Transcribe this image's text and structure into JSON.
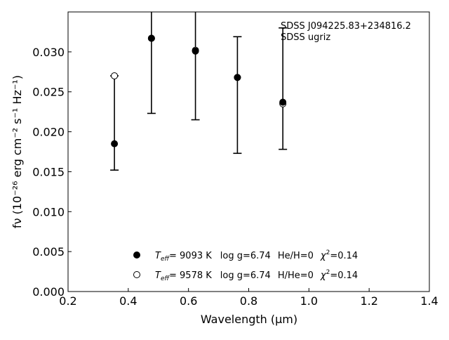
{
  "chart_data": {
    "type": "scatter",
    "xlabel": "Wavelength (μm)",
    "ylabel": "fν (10⁻²⁶ erg cm⁻² s⁻¹ Hz⁻¹)",
    "xlim": [
      0.2,
      1.4
    ],
    "ylim": [
      0.0,
      0.035
    ],
    "x_ticks": [
      0.2,
      0.4,
      0.6,
      0.8,
      1.0,
      1.2,
      1.4
    ],
    "x_tick_labels": [
      "0.2",
      "0.4",
      "0.6",
      "0.8",
      "1.0",
      "1.2",
      "1.4"
    ],
    "y_ticks": [
      0.0,
      0.005,
      0.01,
      0.015,
      0.02,
      0.025,
      0.03
    ],
    "y_tick_labels": [
      "0.000",
      "0.005",
      "0.010",
      "0.015",
      "0.020",
      "0.025",
      "0.030"
    ],
    "grid": false,
    "annotation": {
      "object": "SDSS J094225.83+234816.2",
      "survey": "SDSS ugriz",
      "placement": "top-right"
    },
    "observed": {
      "x": [
        0.354,
        0.477,
        0.6231,
        0.7625,
        0.9134
      ],
      "y": [
        0.0211,
        0.0316,
        0.0303,
        0.0246,
        0.0254
      ],
      "yerr": [
        0.0059,
        0.0093,
        0.0088,
        0.0073,
        0.0076
      ]
    },
    "series": [
      {
        "marker": "filled-circle",
        "x": [
          0.354,
          0.477,
          0.6231,
          0.7625,
          0.9134
        ],
        "y": [
          0.0185,
          0.0317,
          0.0301,
          0.0268,
          0.0237
        ],
        "legend": {
          "teff_label": "T",
          "teff_sub": "eff",
          "teff_value": "=  9093 K",
          "logg": "log g=6.74",
          "comp": "He/H=0",
          "chi_label": "χ",
          "chi_sup": "2",
          "chi_value": "=0.14"
        }
      },
      {
        "marker": "open-circle",
        "x": [
          0.354,
          0.477,
          0.6231,
          0.7625,
          0.9134
        ],
        "y": [
          0.027,
          0.0317,
          0.0302,
          0.0268,
          0.0235
        ],
        "legend": {
          "teff_label": "T",
          "teff_sub": "eff",
          "teff_value": "=  9578 K",
          "logg": "log g=6.74",
          "comp": "H/He=0",
          "chi_label": "χ",
          "chi_sup": "2",
          "chi_value": "=0.14"
        }
      }
    ]
  }
}
